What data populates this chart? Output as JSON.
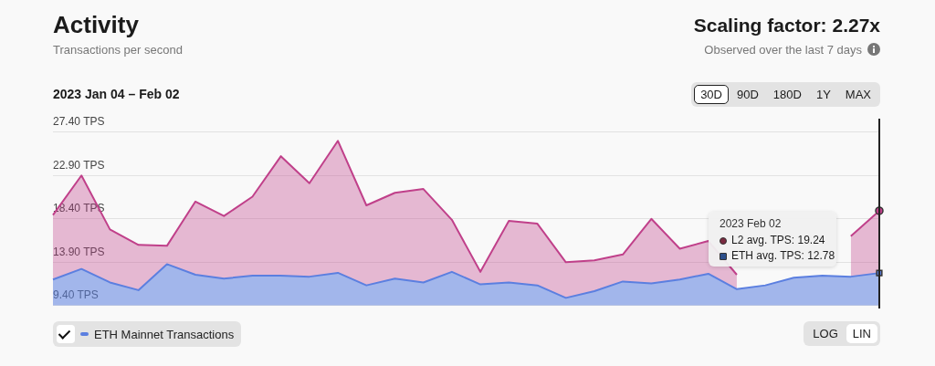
{
  "chart_data": {
    "type": "area",
    "title": "Activity",
    "subtitle": "Transactions per second",
    "categories": [
      null,
      null,
      null,
      null,
      null,
      null,
      null,
      null,
      null,
      null,
      null,
      null,
      null,
      null,
      null,
      null,
      null,
      null,
      null,
      null,
      null,
      null,
      null,
      null,
      null,
      null,
      null,
      null,
      null,
      null
    ],
    "series": [
      {
        "color": "#c0408a",
        "values": [
          18.8,
          22.9,
          17.3,
          15.7,
          15.6,
          20.2,
          18.7,
          20.7,
          24.9,
          22.1,
          26.5,
          19.8,
          21.1,
          21.5,
          18.3,
          12.9,
          18.2,
          17.9,
          13.9,
          14.1,
          14.7,
          18.4,
          15.3,
          16.1,
          12.6,
          null,
          null,
          null,
          16.6,
          19.24
        ]
      },
      {
        "name": "ETH Mainnet Transactions",
        "color": "#5b7fe0",
        "values": [
          12.1,
          13.2,
          11.8,
          11.0,
          13.7,
          12.6,
          12.2,
          12.5,
          12.5,
          12.4,
          12.8,
          11.5,
          12.2,
          11.8,
          12.9,
          11.6,
          11.8,
          11.5,
          10.2,
          10.9,
          11.9,
          11.7,
          12.1,
          12.7,
          11.1,
          11.5,
          12.3,
          12.5,
          12.4,
          12.78
        ]
      }
    ],
    "ylim": [
      9.4,
      28.8
    ],
    "yticks": [
      {
        "value": 9.4,
        "label": "9.40 TPS"
      },
      {
        "value": 13.9,
        "label": "13.90 TPS"
      },
      {
        "value": 18.4,
        "label": "18.40 TPS"
      },
      {
        "value": 22.9,
        "label": "22.90 TPS"
      },
      {
        "value": 27.4,
        "label": "27.40 TPS"
      }
    ],
    "tick_labels": "y",
    "grid": "y",
    "legend": "bottom left",
    "marker": "none",
    "line_style": "solid",
    "annotations": [
      "Scaling factor: 2.27x",
      "Observed over the last 7 days",
      "2023 Jan 04 – Feb 02",
      "30D",
      "90D",
      "180D",
      "1Y",
      "MAX",
      "LOG",
      "LIN",
      "2023 Feb 02",
      "L2 avg. TPS: 19.24",
      "ETH avg. TPS: 12.78"
    ]
  }
}
